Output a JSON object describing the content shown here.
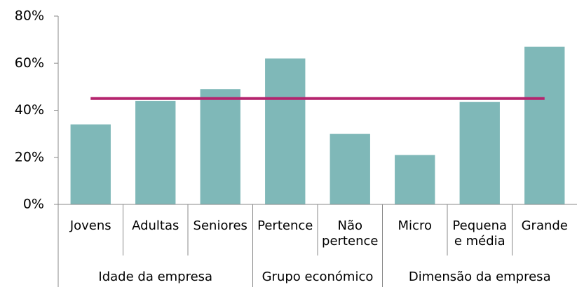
{
  "chart_data": {
    "type": "bar",
    "groups": [
      {
        "name": "Idade da empresa",
        "categories": [
          "Jovens",
          "Adultas",
          "Seniores"
        ]
      },
      {
        "name": "Grupo económico",
        "categories": [
          "Pertence",
          "Não pertence"
        ]
      },
      {
        "name": "Dimensão da empresa",
        "categories": [
          "Micro",
          "Pequena e média",
          "Grande"
        ]
      }
    ],
    "values": [
      34,
      44,
      49,
      62,
      30,
      21,
      43.5,
      67
    ],
    "color": "#7fb8b8",
    "line_value": 45,
    "line_color": "#b5246e",
    "ylim": [
      0,
      80
    ],
    "yticks": [
      {
        "value": 0,
        "label": "0%"
      },
      {
        "value": 20,
        "label": "20%"
      },
      {
        "value": 40,
        "label": "40%"
      },
      {
        "value": 60,
        "label": "60%"
      },
      {
        "value": 80,
        "label": "80%"
      }
    ]
  }
}
